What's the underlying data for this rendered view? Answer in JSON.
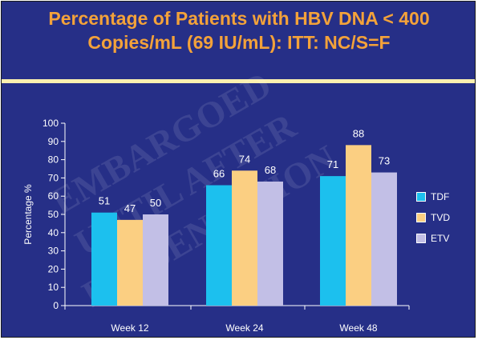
{
  "title": {
    "line1": "Percentage of Patients with HBV DNA < 400",
    "line2": "Copies/mL (69 IU/mL): ITT: NC/S=F"
  },
  "watermark": [
    "EMBARGOED",
    "UNTIL AFTER",
    "PRESENTATION"
  ],
  "colors": {
    "background": "#262f87",
    "title": "#f3a23a",
    "rule": "#fbf0b0",
    "TDF": "#1cc0ee",
    "TVD": "#fbcf82",
    "ETV": "#c2bfe6"
  },
  "chart_data": {
    "type": "bar",
    "title": "",
    "xlabel": "",
    "ylabel": "Percentage %",
    "ylim": [
      0,
      100
    ],
    "yticks": [
      0,
      10,
      20,
      30,
      40,
      50,
      60,
      70,
      80,
      90,
      100
    ],
    "categories": [
      "Week 12",
      "Week 24",
      "Week 48"
    ],
    "series": [
      {
        "name": "TDF",
        "values": [
          51,
          66,
          71
        ]
      },
      {
        "name": "TVD",
        "values": [
          47,
          74,
          88
        ]
      },
      {
        "name": "ETV",
        "values": [
          50,
          68,
          73
        ]
      }
    ],
    "grid": false,
    "legend": "right"
  }
}
